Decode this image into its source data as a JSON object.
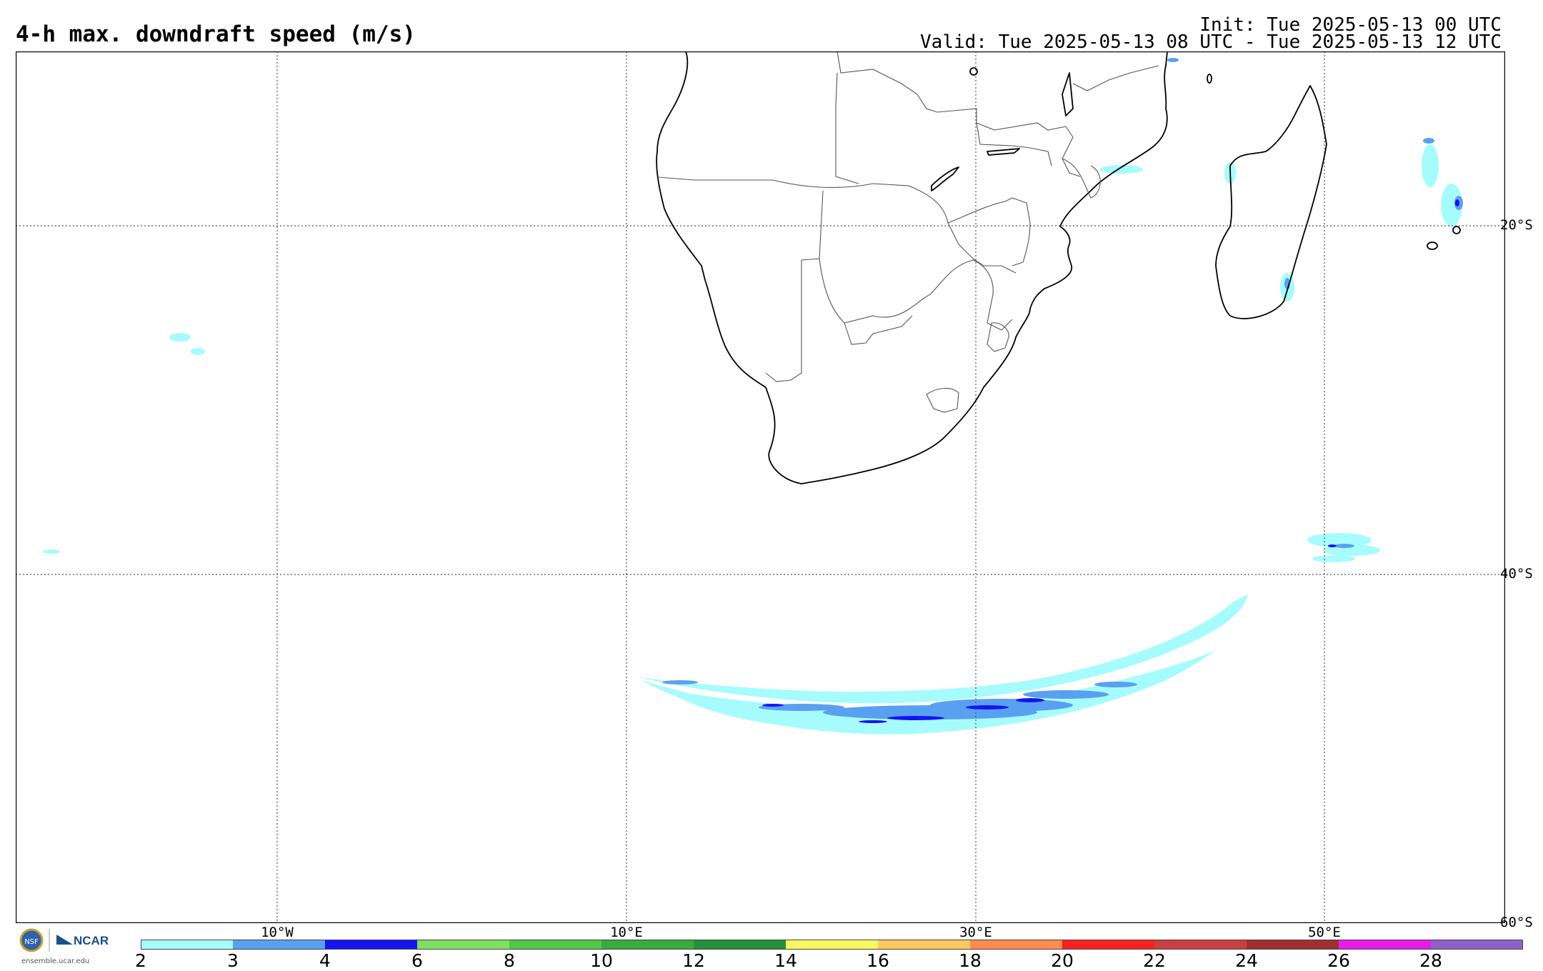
{
  "header": {
    "title": "4-h max. downdraft speed (m/s)",
    "init": "Init: Tue 2025-05-13 00 UTC",
    "valid": "Valid: Tue 2025-05-13 08 UTC - Tue 2025-05-13 12 UTC"
  },
  "map": {
    "region": "Southern Africa / SW Indian Ocean",
    "lat_labels": [
      "20°S",
      "40°S",
      "60°S"
    ],
    "lon_labels": [
      "10°W",
      "10°E",
      "30°E",
      "50°E"
    ],
    "grid": "dotted"
  },
  "colorbar": {
    "labels": [
      "2",
      "3",
      "4",
      "6",
      "8",
      "10",
      "12",
      "14",
      "16",
      "18",
      "20",
      "22",
      "24",
      "26",
      "28"
    ],
    "colors": [
      "#a6fcfc",
      "#5aa0f0",
      "#1414f0",
      "#7ee060",
      "#50c84a",
      "#36ac3c",
      "#24903a",
      "#f8f860",
      "#fcc860",
      "#fc8c50",
      "#f82020",
      "#c84040",
      "#a03030",
      "#e81ce8",
      "#9060c8"
    ]
  },
  "logo": {
    "org": "NCAR",
    "url": "ensemble.ucar.edu"
  }
}
